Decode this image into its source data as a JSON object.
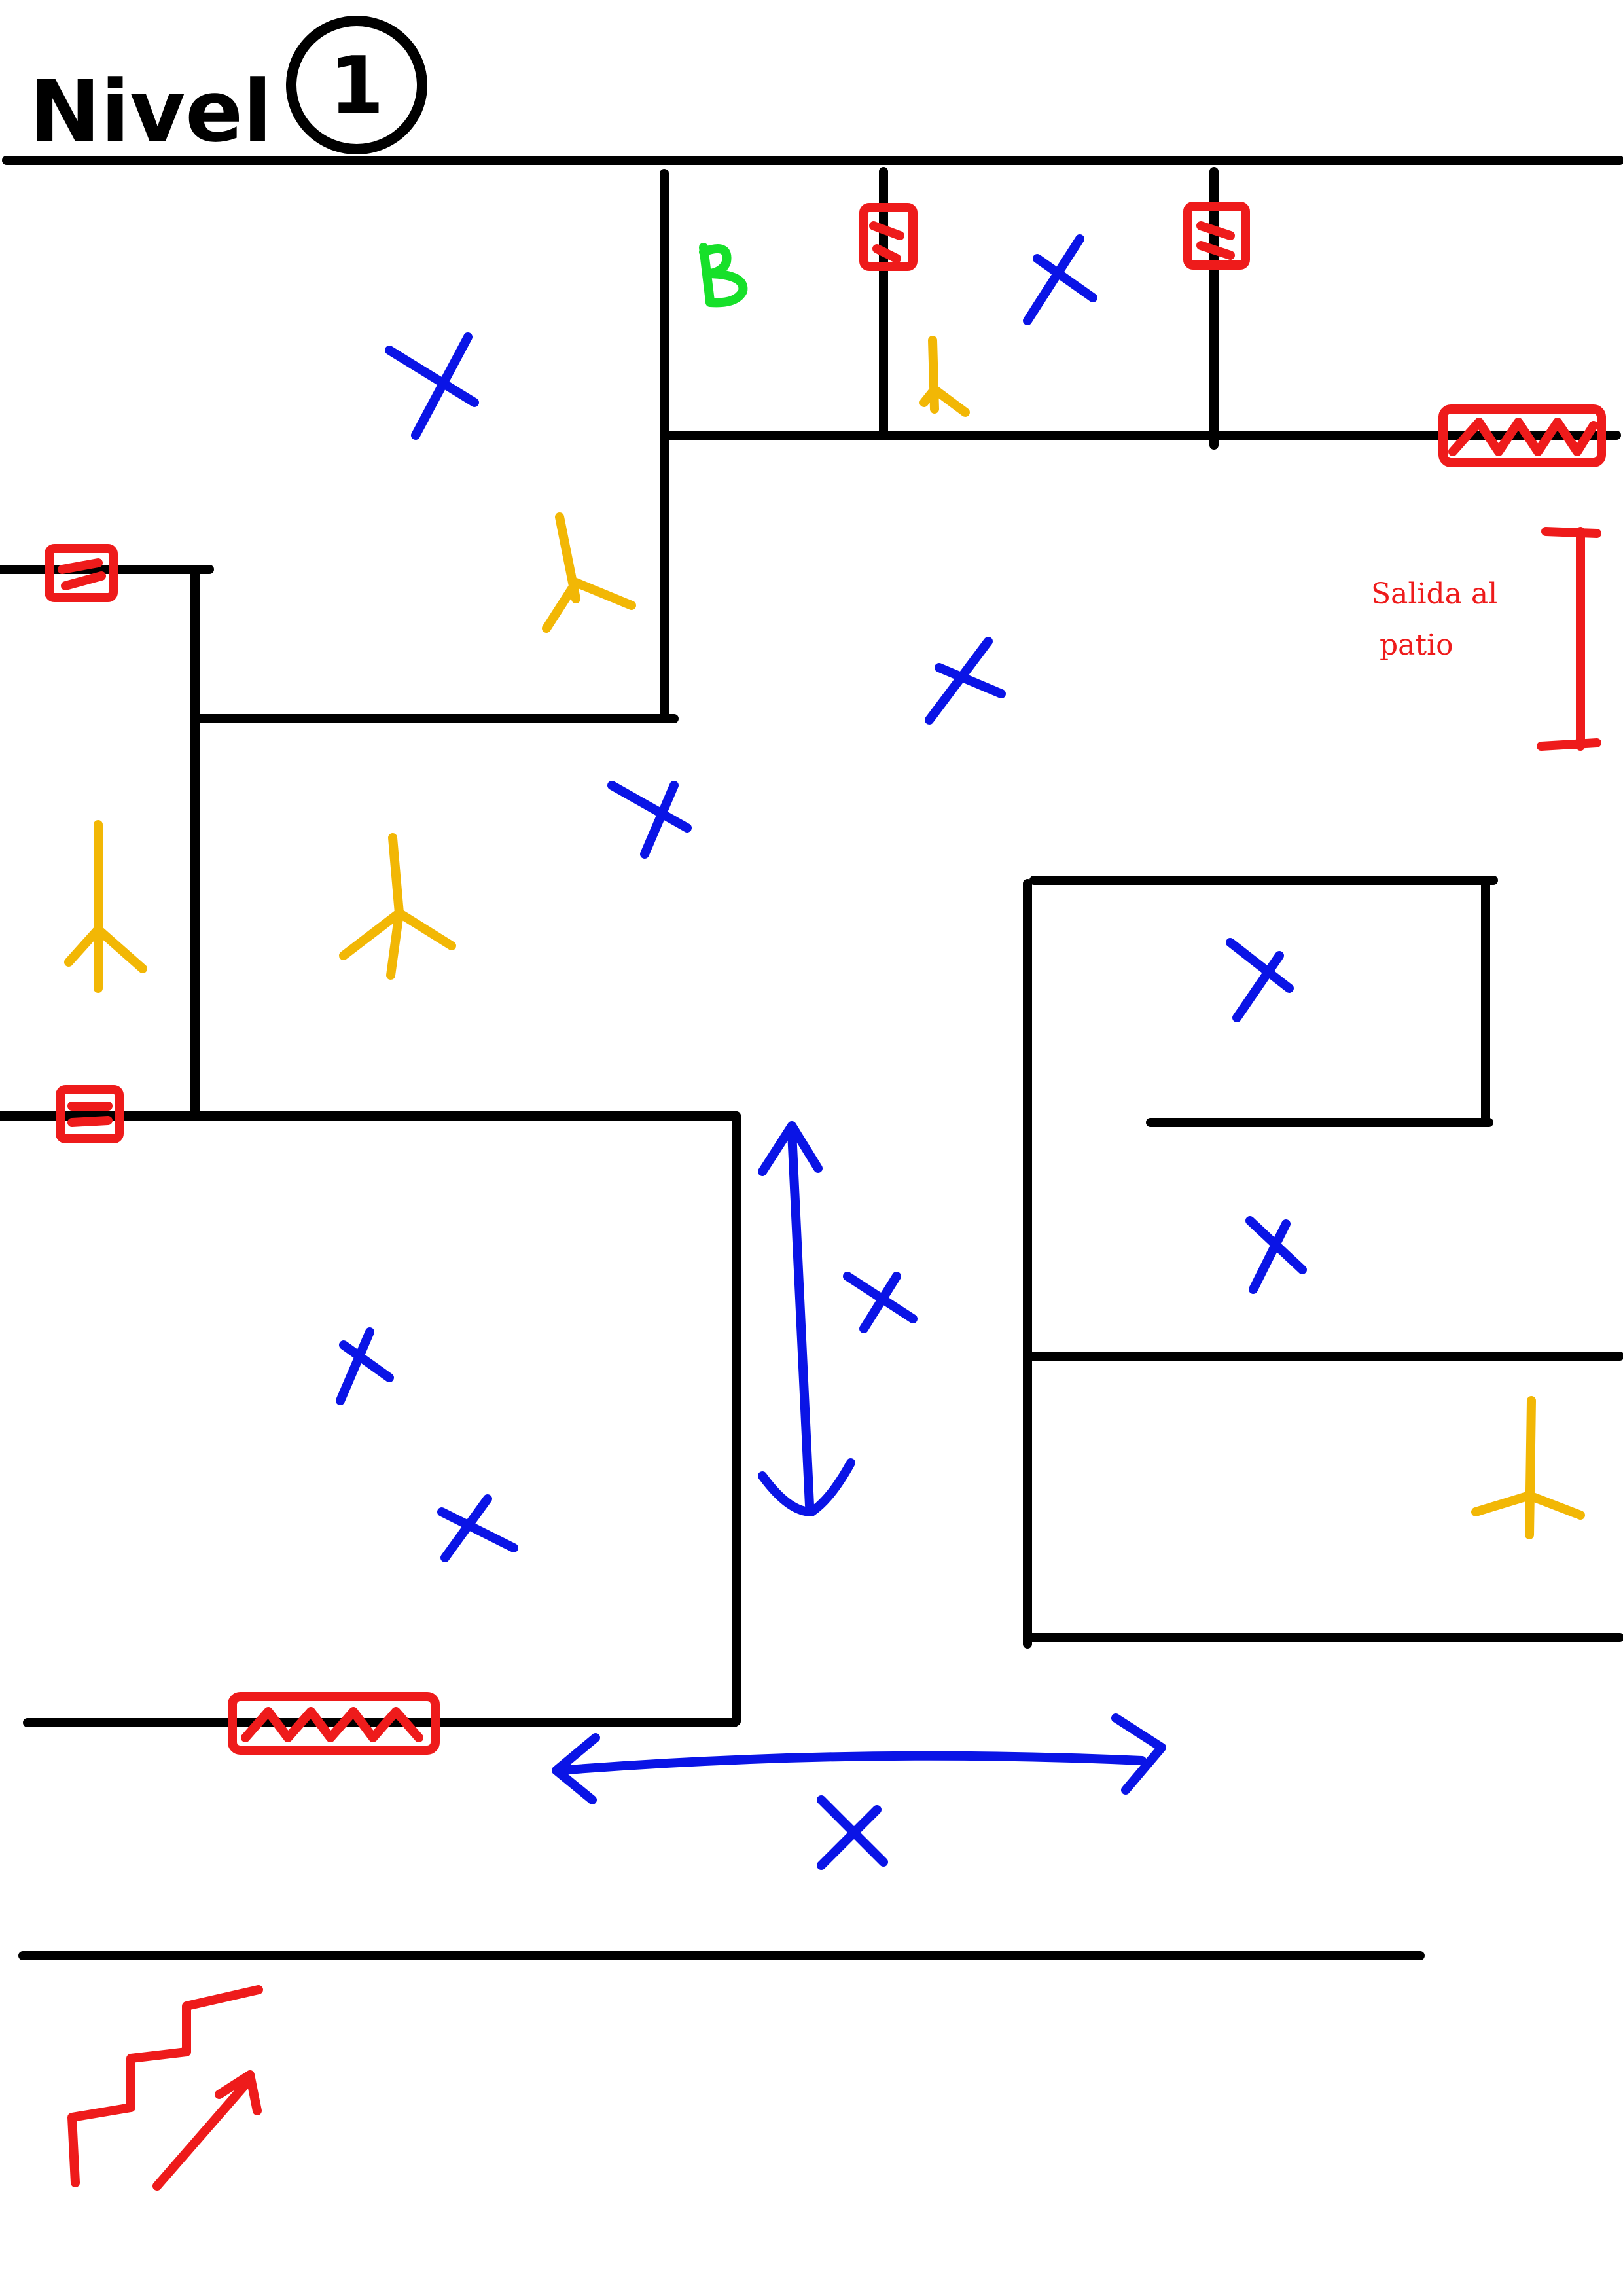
{
  "title": {
    "text": "Nivel",
    "number": "1"
  },
  "note": {
    "line1": "Salida al",
    "line2": "patio"
  },
  "colors": {
    "wall": "#000000",
    "blue_marker": "#0a14e6",
    "yellow_marker": "#f2b705",
    "red_marker": "#ee1b1b",
    "green_marker": "#17e02a"
  },
  "icons": {
    "x_mark": "blue-x-icon",
    "y_mark": "yellow-y-icon",
    "red_square": "red-square-icon",
    "red_exit": "red-hatched-exit-icon",
    "stairs": "red-stairs-icon",
    "double_arrow": "blue-double-arrow-icon",
    "b_letter": "green-b-icon"
  }
}
